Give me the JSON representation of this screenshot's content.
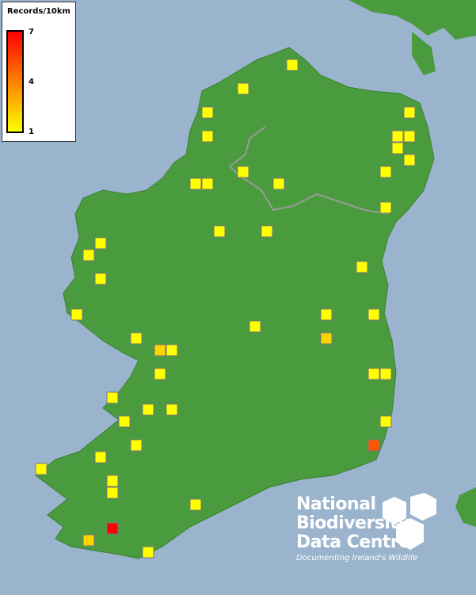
{
  "legend": {
    "title": "Records/10km",
    "max_label": "7",
    "mid_label": "4",
    "min_label": "1",
    "color_min": "#ffff00",
    "color_max": "#ff0000"
  },
  "map": {
    "land_color": "#4a9a3e",
    "sea_color": "#9ab4cd",
    "record_counts": [
      1,
      1,
      1,
      1,
      1,
      1,
      1,
      1,
      1,
      1,
      1,
      1,
      1,
      1,
      1,
      1,
      1,
      1,
      1,
      1,
      1,
      1,
      1,
      1,
      1,
      1,
      2,
      2,
      1,
      1,
      1,
      1,
      1,
      1,
      1,
      1,
      1,
      5,
      1,
      1,
      1,
      1,
      1,
      1,
      7,
      2,
      1
    ]
  },
  "logo": {
    "line1": "National",
    "line2": "Biodiversity",
    "line3": "Data Centre",
    "tagline": "Documenting Ireland's Wildlife"
  }
}
